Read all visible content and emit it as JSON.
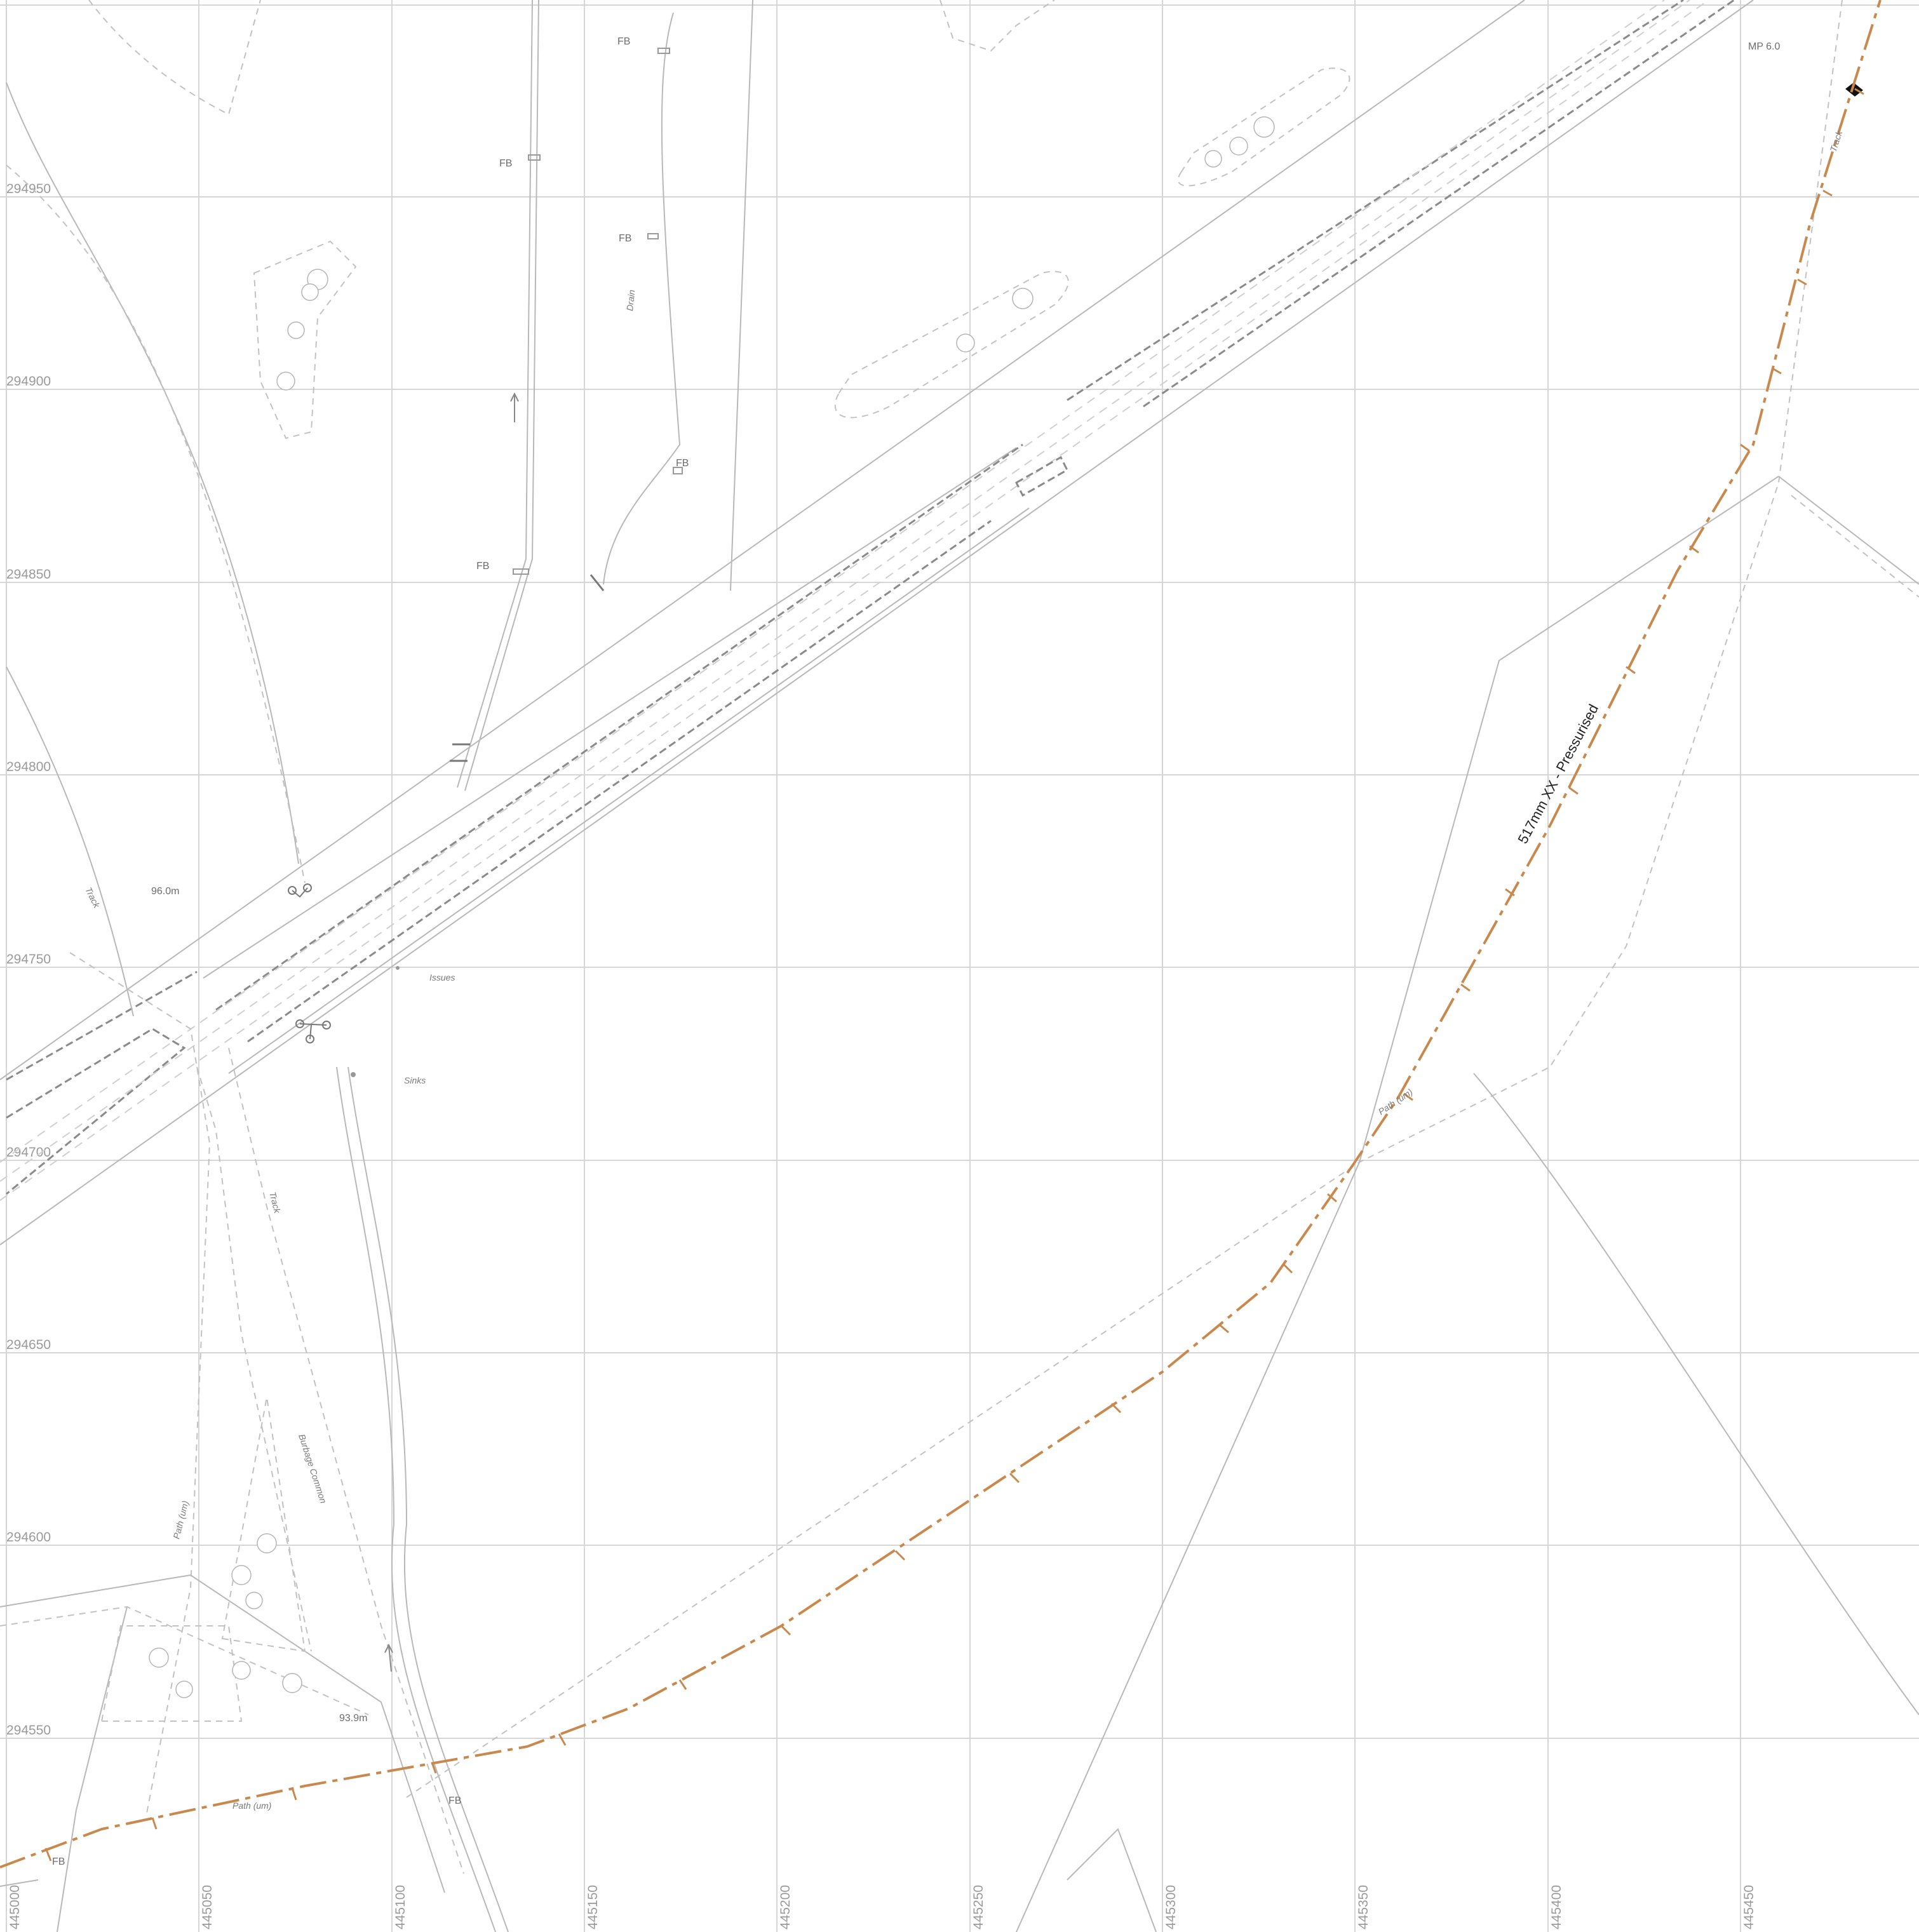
{
  "map": {
    "grid": {
      "eastings": [
        "445000",
        "445050",
        "445100",
        "445150",
        "445200",
        "445250",
        "445300",
        "445350",
        "445400",
        "445450"
      ],
      "northings": [
        "294950",
        "294900",
        "294850",
        "294800",
        "294750",
        "294700",
        "294650",
        "294600",
        "294550"
      ]
    },
    "labels": {
      "fb_1": "FB",
      "fb_2": "FB",
      "fb_3": "FB",
      "fb_4": "FB",
      "fb_5": "FB",
      "fb_6": "FB",
      "fb_7": "FB",
      "drain": "Drain",
      "track_1": "Track",
      "track_2": "Track",
      "spot_height_1": "96.0m",
      "spot_height_2": "93.9m",
      "issues": "Issues",
      "sinks": "Sinks",
      "burbage_common": "Burbage Common",
      "path_um_1": "Path (um)",
      "path_um_2": "Path (um)",
      "path_um_3": "Path (um)",
      "mp": "MP 6.0",
      "track_3": "Track"
    },
    "pipeline": {
      "label": "517mm XX - Pressurised",
      "color": "#c8894f"
    },
    "colors": {
      "grid": "#d6d6d6",
      "feature": "#b8b8b8",
      "rail": "#8a8a8a"
    }
  }
}
